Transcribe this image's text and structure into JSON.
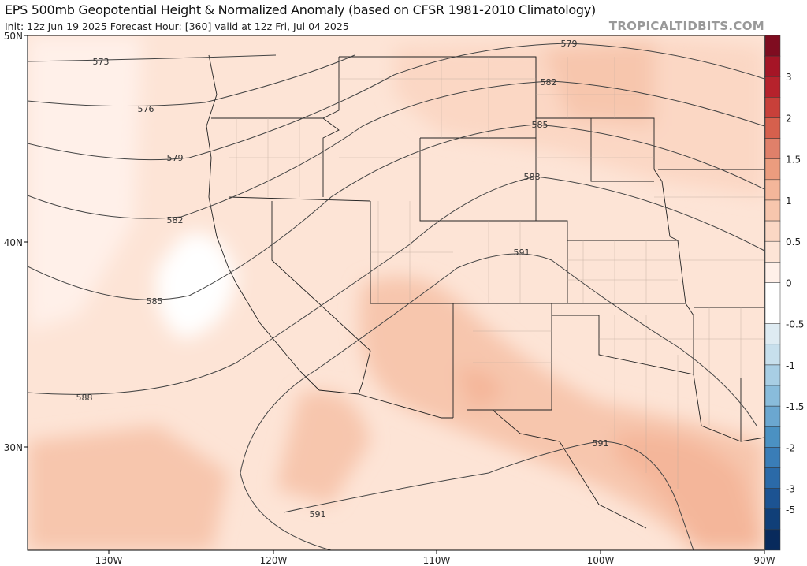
{
  "header": {
    "title": "EPS 500mb Geopotential Height & Normalized Anomaly (based on CFSR 1981-2010 Climatology)",
    "subtitle": "Init: 12z Jun 19 2025   Forecast Hour: [360]   valid at 12z Fri, Jul 04 2025",
    "brand": "TROPICALTIDBITS.COM"
  },
  "map": {
    "lat_labels": [
      "50N",
      "40N",
      "30N"
    ],
    "lon_labels": [
      "130W",
      "120W",
      "110W",
      "100W",
      "90W"
    ],
    "contour_labels": [
      "573",
      "576",
      "579",
      "579",
      "582",
      "582",
      "585",
      "585",
      "588",
      "588",
      "591",
      "591",
      "591"
    ]
  },
  "colorbar": {
    "labels": [
      "3",
      "2",
      "1.5",
      "1",
      "0.5",
      "0",
      "-0.5",
      "-1",
      "-1.5",
      "-2",
      "-3",
      "-5"
    ],
    "colors": [
      "#7f0c20",
      "#a51526",
      "#b6222c",
      "#c8403a",
      "#d6604d",
      "#e0806a",
      "#eb9c7e",
      "#f4b69a",
      "#f7c6ad",
      "#fbd7c4",
      "#fde4d6",
      "#fff0e9",
      "#ffffff",
      "#ffffff",
      "#deebf2",
      "#c7dfec",
      "#a8cee4",
      "#89bcdb",
      "#6ba7d0",
      "#4b91c2",
      "#3a7db7",
      "#2b6aa8",
      "#1c5392",
      "#103f78",
      "#082a5c"
    ]
  }
}
